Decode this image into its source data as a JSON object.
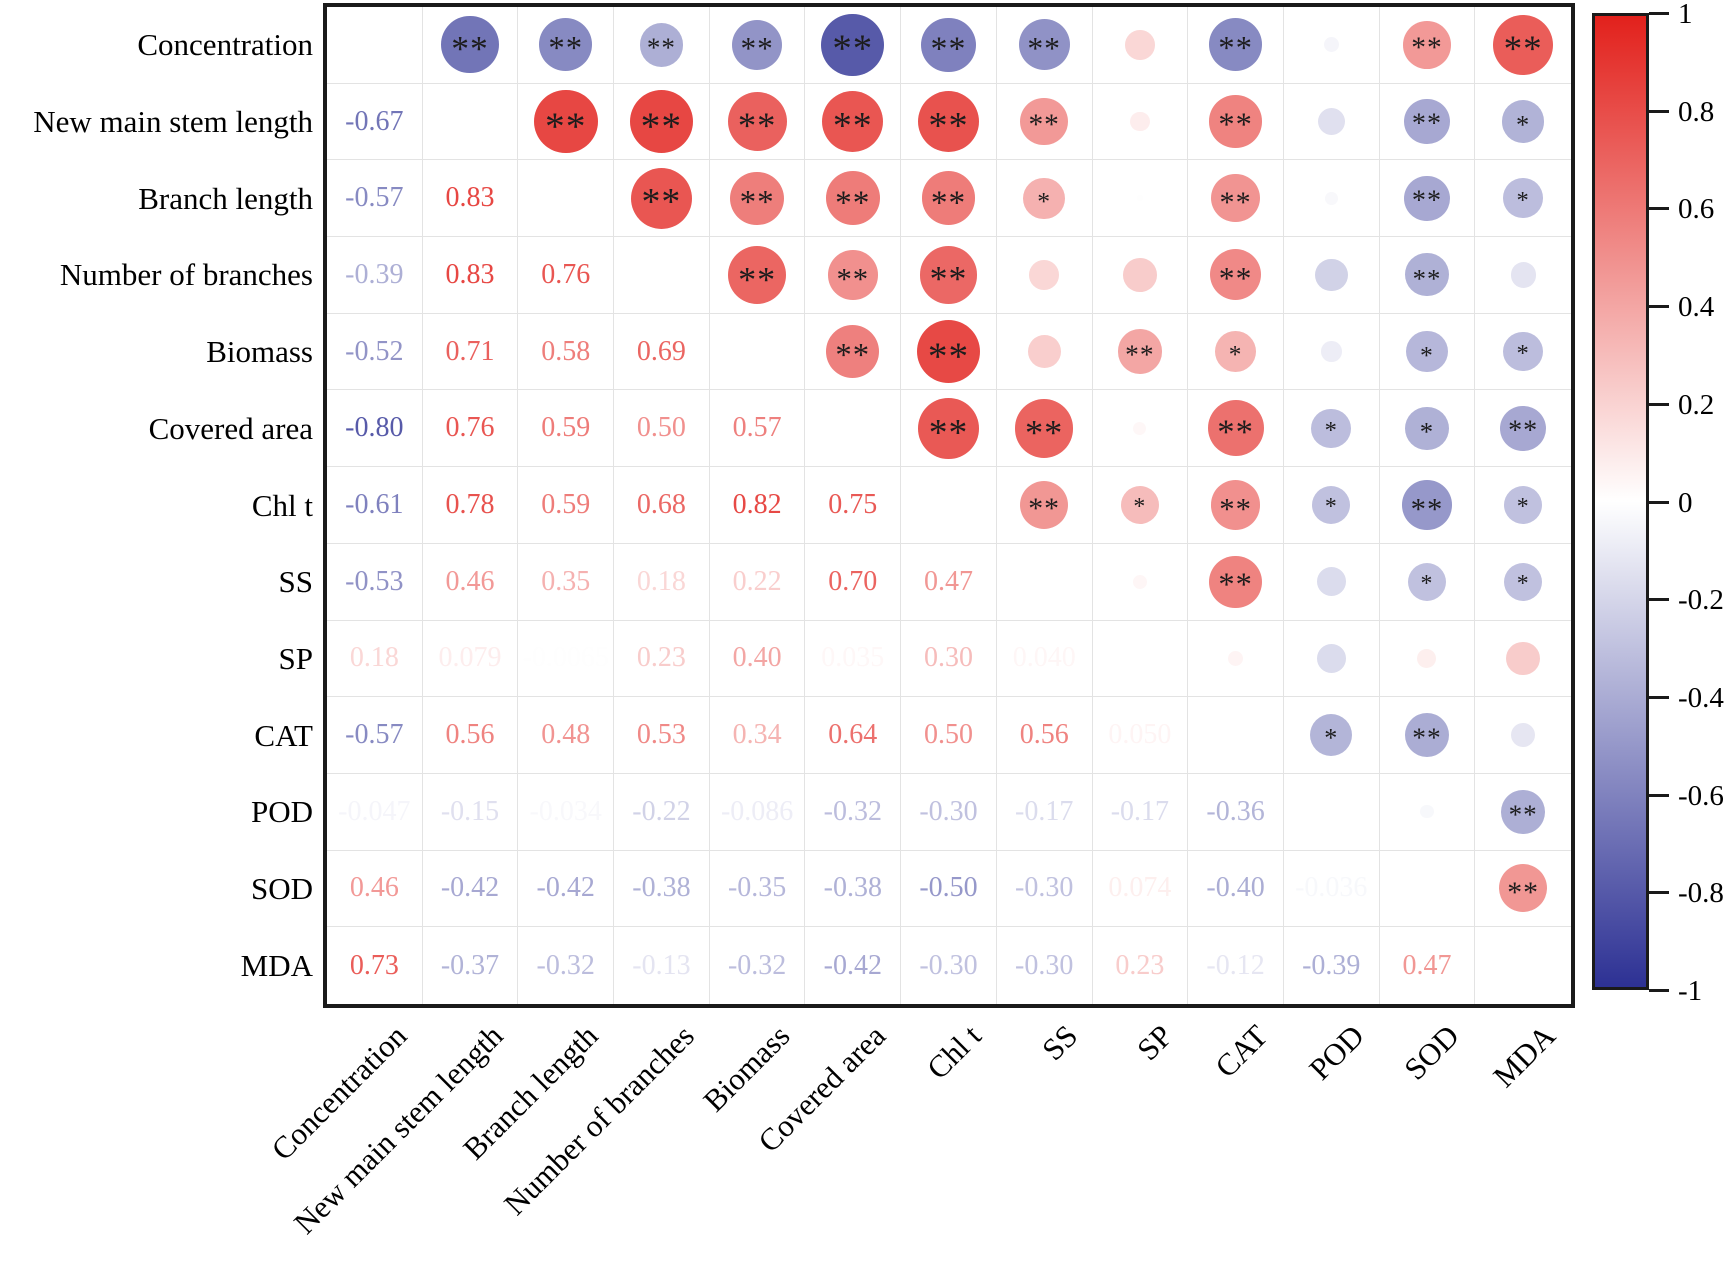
{
  "chart_data": {
    "type": "correlation-matrix",
    "title": "",
    "description": "Pairwise correlation matrix: lower triangle shows correlation coefficients as colored numbers, upper triangle shows circles sized and colored by correlation with significance stars, diagonal empty",
    "variables": [
      "Concentration",
      "New main stem length",
      "Branch length",
      "Number of branches",
      "Biomass",
      "Covered area",
      "Chl t",
      "SS",
      "SP",
      "CAT",
      "POD",
      "SOD",
      "MDA"
    ],
    "lower_triangle_values": [
      [],
      [
        "-0.67"
      ],
      [
        "-0.57",
        "0.83"
      ],
      [
        "-0.39",
        "0.83",
        "0.76"
      ],
      [
        "-0.52",
        "0.71",
        "0.58",
        "0.69"
      ],
      [
        "-0.80",
        "0.76",
        "0.59",
        "0.50",
        "0.57"
      ],
      [
        "-0.61",
        "0.78",
        "0.59",
        "0.68",
        "0.82",
        "0.75"
      ],
      [
        "-0.53",
        "0.46",
        "0.35",
        "0.18",
        "0.22",
        "0.70",
        "0.47"
      ],
      [
        "0.18",
        "0.079",
        "-0.0065",
        "0.23",
        "0.40",
        "0.035",
        "0.30",
        "0.040"
      ],
      [
        "-0.57",
        "0.56",
        "0.48",
        "0.53",
        "0.34",
        "0.64",
        "0.50",
        "0.56",
        "0.050"
      ],
      [
        "-0.047",
        "-0.15",
        "-0.034",
        "-0.22",
        "-0.086",
        "-0.32",
        "-0.30",
        "-0.17",
        "-0.17",
        "-0.36"
      ],
      [
        "0.46",
        "-0.42",
        "-0.42",
        "-0.38",
        "-0.35",
        "-0.38",
        "-0.50",
        "-0.30",
        "0.074",
        "-0.40",
        "-0.036"
      ],
      [
        "0.73",
        "-0.37",
        "-0.32",
        "-0.13",
        "-0.32",
        "-0.42",
        "-0.30",
        "-0.30",
        "0.23",
        "-0.12",
        "-0.39",
        "0.47"
      ]
    ],
    "upper_triangle_stars": [
      [
        "**",
        "**",
        "**",
        "**",
        "**",
        "**",
        "**",
        "",
        "**",
        "",
        "**",
        "**"
      ],
      [
        "**",
        "**",
        "**",
        "**",
        "**",
        "**",
        "",
        "**",
        "",
        "**",
        "*"
      ],
      [
        "**",
        "**",
        "**",
        "**",
        "*",
        "",
        "**",
        "",
        "**",
        "*"
      ],
      [
        "**",
        "**",
        "**",
        "",
        "",
        "**",
        "",
        "**",
        ""
      ],
      [
        "**",
        "**",
        "",
        "**",
        "*",
        "",
        "*",
        "*"
      ],
      [
        "**",
        "**",
        "",
        "**",
        "*",
        "*",
        "**"
      ],
      [
        "**",
        "*",
        "**",
        "*",
        "**",
        "*"
      ],
      [
        "",
        "**",
        "",
        "*",
        "*"
      ],
      [
        "",
        "",
        "",
        ""
      ],
      [
        "*",
        "**",
        ""
      ],
      [
        "",
        "**"
      ],
      [
        "**"
      ],
      []
    ],
    "colorbar": {
      "range": [
        -1,
        1
      ],
      "tick_labels": [
        "1",
        "0.8",
        "0.6",
        "0.4",
        "0.2",
        "0",
        "-0.2",
        "-0.4",
        "-0.6",
        "-0.8",
        "-1"
      ]
    },
    "colors": {
      "positive_max": "#e2211c",
      "negative_max": "#2d3194",
      "zero": "#ffffff",
      "star": "#1c1c1c",
      "grid_line": "#e3e3e3",
      "border": "#1a1a1a"
    },
    "legend_position": "right",
    "grid": true
  }
}
